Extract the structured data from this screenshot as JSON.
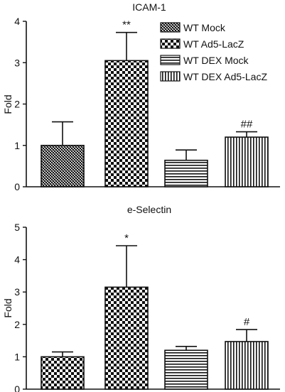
{
  "chart_data": [
    {
      "type": "bar",
      "title": "ICAM-1",
      "xlabel": "",
      "ylabel": "Fold",
      "ylim": [
        0,
        4
      ],
      "yticks": [
        0,
        1,
        2,
        3,
        4
      ],
      "grid": false,
      "legend_position": "top-right",
      "categories": [
        "WT Mock",
        "WT Ad5-LacZ",
        "WT DEX Mock",
        "WT DEX Ad5-LacZ"
      ],
      "values": [
        1.0,
        3.05,
        0.64,
        1.2
      ],
      "errors": [
        0.57,
        0.68,
        0.25,
        0.13
      ],
      "annotations": [
        "",
        "**",
        "",
        "##"
      ],
      "patterns": [
        "fine-diagonal",
        "checker",
        "horizontal",
        "vertical"
      ],
      "legend": [
        "WT Mock",
        "WT Ad5-LacZ",
        "WT DEX Mock",
        "WT DEX Ad5-LacZ"
      ]
    },
    {
      "type": "bar",
      "title": "e-Selectin",
      "xlabel": "",
      "ylabel": "Fold",
      "ylim": [
        0,
        5
      ],
      "yticks": [
        0,
        1,
        2,
        3,
        4,
        5
      ],
      "grid": false,
      "categories": [
        "WT Mock",
        "WT Ad5-LacZ",
        "WT DEX Mock",
        "WT DEX Ad5-LacZ"
      ],
      "values": [
        1.0,
        3.15,
        1.2,
        1.47
      ],
      "errors": [
        0.15,
        1.28,
        0.12,
        0.37
      ],
      "annotations": [
        "",
        "*",
        "",
        "#"
      ],
      "patterns": [
        "checker",
        "checker",
        "horizontal",
        "vertical"
      ]
    }
  ]
}
